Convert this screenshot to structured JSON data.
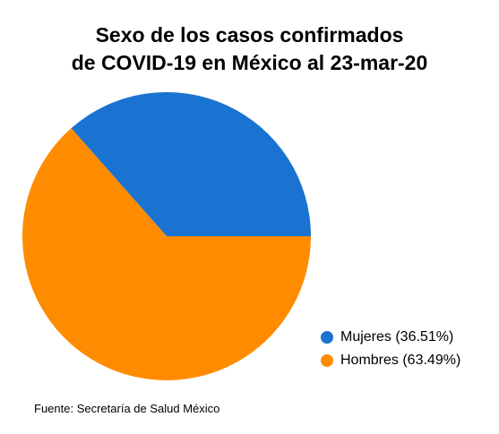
{
  "chart_data": {
    "type": "pie",
    "title_lines": [
      "Sexo de los casos confirmados",
      "de COVID-19 en México al 23-mar-20"
    ],
    "slices": [
      {
        "label": "Mujeres",
        "legend_label": "Mujeres (36.51%)",
        "value": 36.51,
        "color": "#1a73d0"
      },
      {
        "label": "Hombres",
        "legend_label": "Hombres (63.49%)",
        "value": 63.49,
        "color": "#ff8c00"
      }
    ],
    "legend_position": "bottom-right",
    "start_angle": "east, clockwise direction counter-clockwise (Mujeres in upper-right)"
  },
  "source_note": "Fuente: Secretaría de Salud México"
}
